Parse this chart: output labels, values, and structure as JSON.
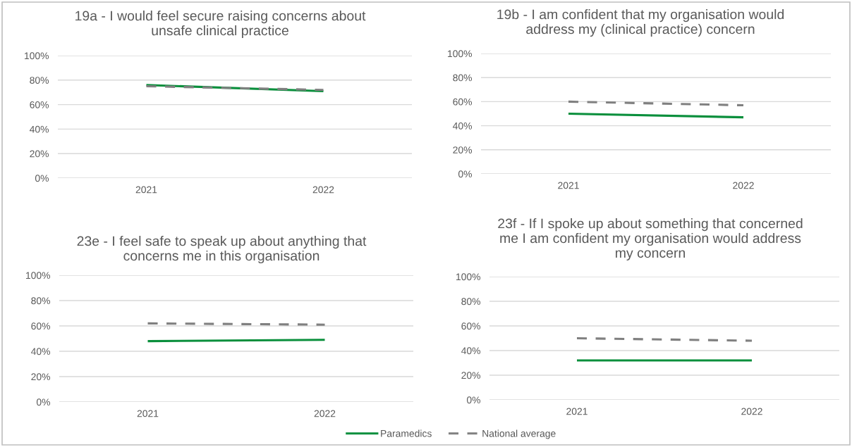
{
  "chart_data": [
    {
      "type": "line",
      "title": "19a - I would feel secure raising concerns about unsafe clinical practice",
      "categories": [
        "2021",
        "2022"
      ],
      "series": [
        {
          "name": "Paramedics",
          "color": "#0a8f3c",
          "values": [
            76,
            71
          ],
          "line_style": "solid"
        },
        {
          "name": "National average",
          "color": "#808080",
          "values": [
            75,
            72
          ],
          "line_style": "dashed"
        }
      ],
      "ylim": [
        0,
        100
      ],
      "yticks": [
        {
          "value": 0,
          "label": "0%"
        },
        {
          "value": 20,
          "label": "20%"
        },
        {
          "value": 40,
          "label": "40%"
        },
        {
          "value": 60,
          "label": "60%"
        },
        {
          "value": 80,
          "label": "80%"
        },
        {
          "value": 100,
          "label": "100%"
        }
      ],
      "grid": "y",
      "legend": "bottom"
    },
    {
      "type": "line",
      "title": "19b - I am confident that my organisation would address my (clinical practice) concern",
      "categories": [
        "2021",
        "2022"
      ],
      "series": [
        {
          "name": "Paramedics",
          "color": "#0a8f3c",
          "values": [
            50,
            47
          ],
          "line_style": "solid"
        },
        {
          "name": "National average",
          "color": "#808080",
          "values": [
            60,
            57
          ],
          "line_style": "dashed"
        }
      ],
      "ylim": [
        0,
        100
      ],
      "yticks": [
        {
          "value": 0,
          "label": "0%"
        },
        {
          "value": 20,
          "label": "20%"
        },
        {
          "value": 40,
          "label": "40%"
        },
        {
          "value": 60,
          "label": "60%"
        },
        {
          "value": 80,
          "label": "80%"
        },
        {
          "value": 100,
          "label": "100%"
        }
      ],
      "grid": "y",
      "legend": "bottom"
    },
    {
      "type": "line",
      "title": "23e - I feel safe to speak up about anything that concerns me in this organisation",
      "categories": [
        "2021",
        "2022"
      ],
      "series": [
        {
          "name": "Paramedics",
          "color": "#0a8f3c",
          "values": [
            48,
            49
          ],
          "line_style": "solid"
        },
        {
          "name": "National average",
          "color": "#808080",
          "values": [
            62,
            61
          ],
          "line_style": "dashed"
        }
      ],
      "ylim": [
        0,
        100
      ],
      "yticks": [
        {
          "value": 0,
          "label": "0%"
        },
        {
          "value": 20,
          "label": "20%"
        },
        {
          "value": 40,
          "label": "40%"
        },
        {
          "value": 60,
          "label": "60%"
        },
        {
          "value": 80,
          "label": "80%"
        },
        {
          "value": 100,
          "label": "100%"
        }
      ],
      "grid": "y",
      "legend": "bottom"
    },
    {
      "type": "line",
      "title": "23f - If I spoke up about something that concerned me I am confident my organisation would address my concern",
      "categories": [
        "2021",
        "2022"
      ],
      "series": [
        {
          "name": "Paramedics",
          "color": "#0a8f3c",
          "values": [
            32,
            32
          ],
          "line_style": "solid"
        },
        {
          "name": "National average",
          "color": "#808080",
          "values": [
            50,
            48
          ],
          "line_style": "dashed"
        }
      ],
      "ylim": [
        0,
        100
      ],
      "yticks": [
        {
          "value": 0,
          "label": "0%"
        },
        {
          "value": 20,
          "label": "20%"
        },
        {
          "value": 40,
          "label": "40%"
        },
        {
          "value": 60,
          "label": "60%"
        },
        {
          "value": 80,
          "label": "80%"
        },
        {
          "value": 100,
          "label": "100%"
        }
      ],
      "grid": "y",
      "legend": "bottom"
    }
  ]
}
